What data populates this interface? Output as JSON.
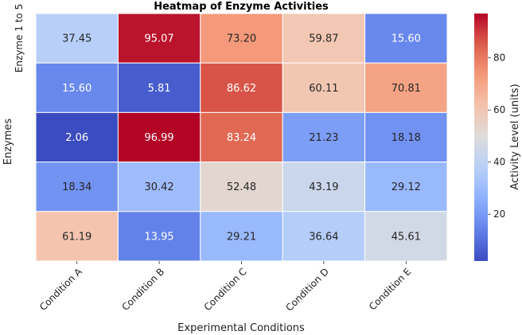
{
  "chart_data": {
    "type": "heatmap",
    "title": "Heatmap of Enzyme Activities",
    "xlabel": "Experimental Conditions",
    "ylabel": "Enzymes",
    "row_label": "Enzyme 1 to 5",
    "categories": [
      "Condition A",
      "Condition B",
      "Condition C",
      "Condition D",
      "Condition E"
    ],
    "rows": [
      {
        "values": [
          37.45,
          95.07,
          73.2,
          59.87,
          15.6
        ]
      },
      {
        "values": [
          15.6,
          5.81,
          86.62,
          60.11,
          70.81
        ]
      },
      {
        "values": [
          2.06,
          96.99,
          83.24,
          21.23,
          18.18
        ]
      },
      {
        "values": [
          18.34,
          30.42,
          52.48,
          43.19,
          29.12
        ]
      },
      {
        "values": [
          61.19,
          13.95,
          29.21,
          36.64,
          45.61
        ]
      }
    ],
    "value_range": [
      2.06,
      96.99
    ],
    "colormap": "coolwarm",
    "colorbar": {
      "label": "Activity Level (units)",
      "ticks": [
        20,
        40,
        60,
        80
      ]
    },
    "annotations": "cell values shown with 2 decimals",
    "grid": false
  }
}
